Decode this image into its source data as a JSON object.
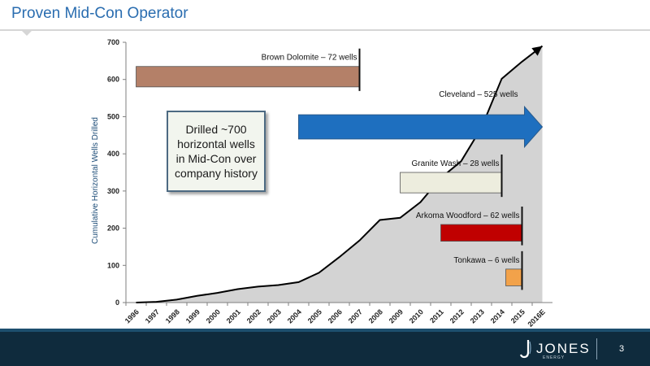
{
  "header": {
    "title": "Proven Mid-Con Operator"
  },
  "callout": {
    "text": "Drilled ~700 horizontal wells in Mid-Con over company history"
  },
  "footer": {
    "logo_text": "JONES",
    "logo_sub": "ENERGY",
    "page_number": "3"
  },
  "colors": {
    "title": "#2a6db0",
    "area_fill": "#d3d3d3",
    "line": "#000000",
    "brown_dolomite": "#b48068",
    "cleveland": "#1e6fbf",
    "granite_wash": "#ededde",
    "arkoma_woodford": "#c00000",
    "tonkawa": "#f2a24a",
    "footer": "#0f2b3d"
  },
  "chart_data": {
    "type": "area",
    "title": "",
    "xlabel": "",
    "ylabel": "Cumulative Horizontal Wells Drilled",
    "categories": [
      "1996",
      "1997",
      "1998",
      "1999",
      "2000",
      "2001",
      "2002",
      "2003",
      "2004",
      "2005",
      "2006",
      "2007",
      "2008",
      "2009",
      "2010",
      "2011",
      "2012",
      "2013",
      "2014",
      "2015",
      "2016E"
    ],
    "yticks": [
      0,
      100,
      200,
      300,
      400,
      500,
      600,
      700
    ],
    "ylim": [
      0,
      700
    ],
    "grid": false,
    "series": [
      {
        "values": [
          0,
          2,
          8,
          18,
          26,
          36,
          43,
          47,
          55,
          80,
          122,
          167,
          222,
          228,
          270,
          335,
          380,
          470,
          602,
          648,
          690
        ]
      }
    ],
    "play_bars": [
      {
        "label": "Brown Dolomite – 72 wells",
        "start": 1996,
        "end": 2007,
        "y_low": 580,
        "y_high": 635,
        "style": "bar"
      },
      {
        "label": "Cleveland – 525 wells",
        "start": 2004,
        "end": 2016,
        "y_low": 440,
        "y_high": 505,
        "style": "arrow"
      },
      {
        "label": "Granite Wash – 28 wells",
        "start": 2009,
        "end": 2014,
        "y_low": 295,
        "y_high": 350,
        "style": "bar"
      },
      {
        "label": "Arkoma Woodford – 62 wells",
        "start": 2011,
        "end": 2015,
        "y_low": 165,
        "y_high": 210,
        "style": "bar"
      },
      {
        "label": "Tonkawa – 6 wells",
        "start": 2014.2,
        "end": 2015,
        "y_low": 45,
        "y_high": 90,
        "style": "bar"
      }
    ]
  }
}
